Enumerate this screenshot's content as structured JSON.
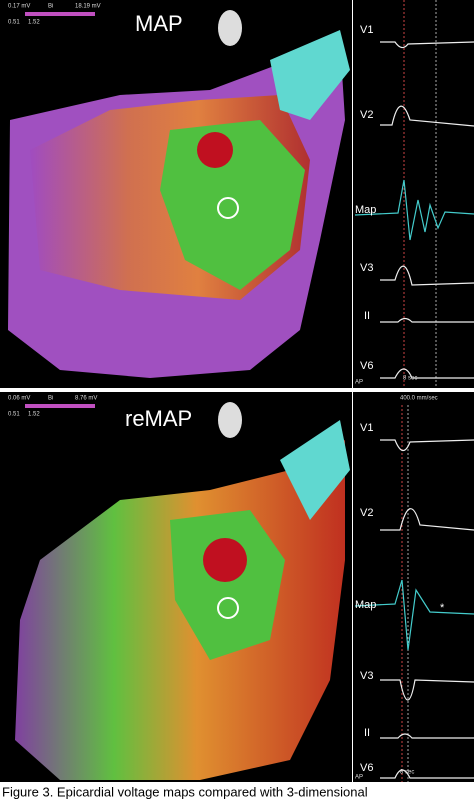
{
  "top": {
    "scale": {
      "min": "0.17 mV",
      "mode": "Bi",
      "max": "18.19 mV",
      "low": "0.51",
      "high": "1.52"
    },
    "title": "MAP",
    "leads": [
      "V1",
      "V2",
      "Map",
      "V3",
      "II",
      "V6"
    ],
    "footer": [
      "AP",
      "8 sec"
    ]
  },
  "bottom": {
    "scale": {
      "min": "0.06 mV",
      "mode": "Bi",
      "max": "8.76 mV",
      "low": "0.51",
      "high": "1.52"
    },
    "title": "reMAP",
    "speed": "400.0 mm/sec",
    "leads": [
      "V1",
      "V2",
      "Map",
      "V3",
      "II",
      "V6"
    ],
    "annotation": "*",
    "footer": [
      "AP",
      "8 sec"
    ]
  },
  "caption": "Figure 3. Epicardial voltage maps compared with 3-dimensional"
}
